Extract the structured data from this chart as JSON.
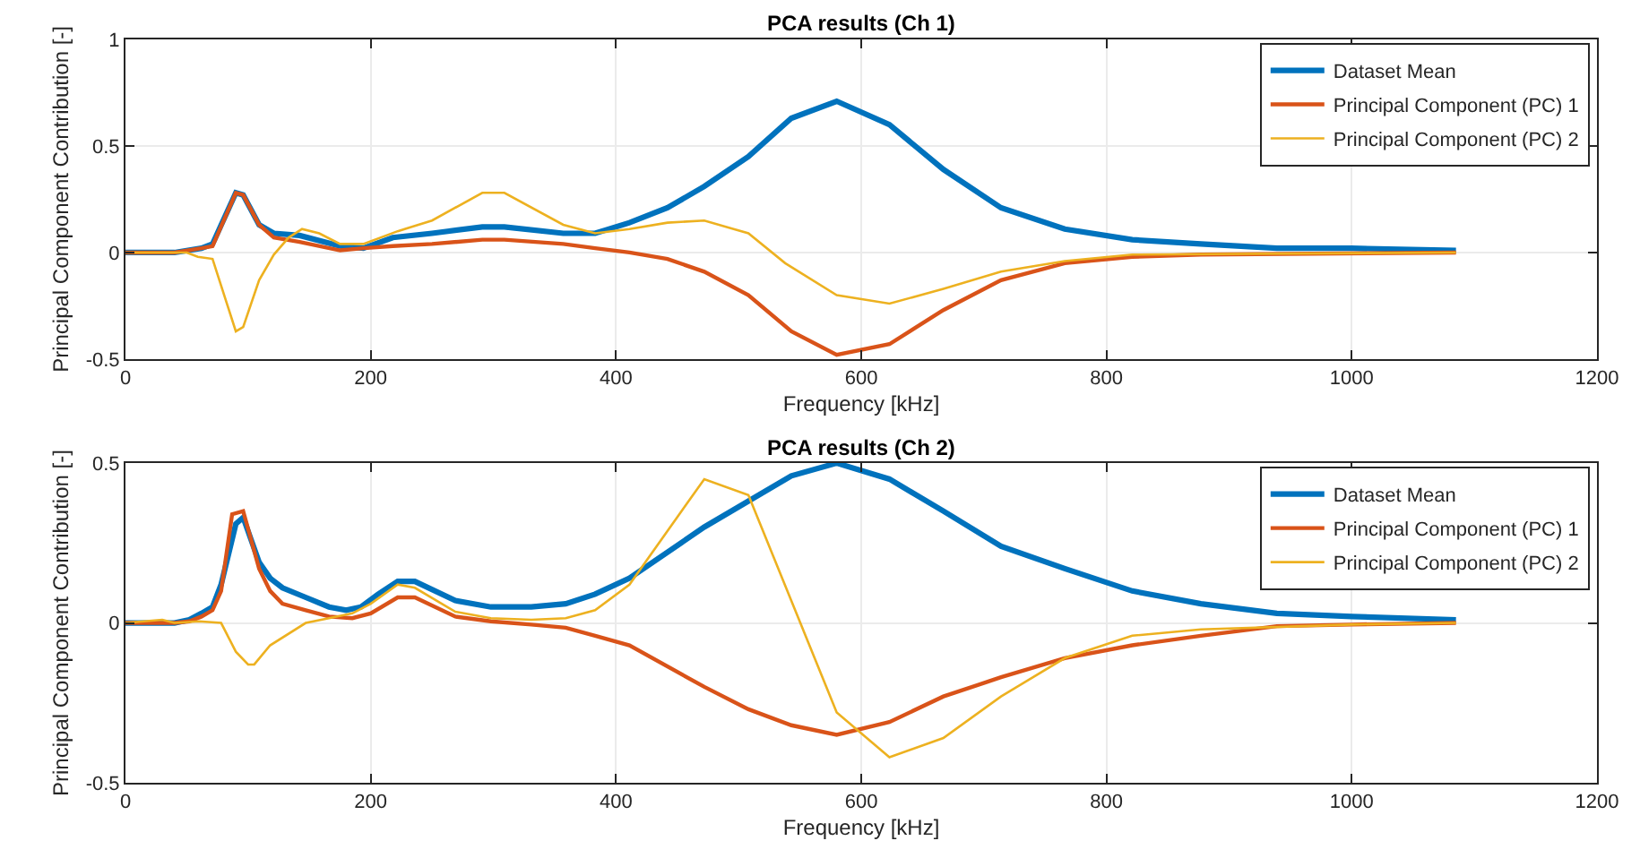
{
  "chart_data": [
    {
      "type": "line",
      "title": "PCA results (Ch 1)",
      "xlabel": "Frequency [kHz]",
      "ylabel": "Principal Component Contribution [-]",
      "xlim": [
        0,
        1200
      ],
      "xticks": [
        0,
        200,
        400,
        600,
        800,
        1000,
        1200
      ],
      "ylim": [
        -0.5,
        1
      ],
      "yticks": [
        -0.5,
        0,
        0.5,
        1
      ],
      "grid": true,
      "legend": "top right",
      "line_style": "solid",
      "series": [
        {
          "name": "Dataset Mean",
          "color": "#0072bd",
          "x": [
            0,
            40,
            62,
            71,
            90,
            96,
            109,
            121,
            142,
            175,
            194,
            218,
            250,
            291,
            309,
            357,
            383,
            411,
            442,
            472,
            508,
            543,
            580,
            623,
            667,
            714,
            766,
            821,
            877,
            939,
            1000,
            1085
          ],
          "values": [
            0,
            0,
            0.02,
            0.04,
            0.28,
            0.27,
            0.13,
            0.09,
            0.08,
            0.03,
            0.02,
            0.07,
            0.09,
            0.12,
            0.12,
            0.09,
            0.09,
            0.14,
            0.21,
            0.31,
            0.45,
            0.63,
            0.71,
            0.6,
            0.39,
            0.21,
            0.11,
            0.06,
            0.04,
            0.02,
            0.02,
            0.01
          ]
        },
        {
          "name": "Principal Component (PC) 1",
          "color": "#d95319",
          "x": [
            0,
            40,
            62,
            71,
            90,
            96,
            109,
            121,
            142,
            175,
            194,
            218,
            250,
            291,
            309,
            357,
            383,
            411,
            442,
            472,
            508,
            543,
            580,
            623,
            667,
            714,
            766,
            821,
            877,
            1085
          ],
          "values": [
            0,
            0,
            0.02,
            0.03,
            0.28,
            0.27,
            0.13,
            0.07,
            0.05,
            0.01,
            0.02,
            0.03,
            0.04,
            0.06,
            0.06,
            0.04,
            0.02,
            0,
            -0.03,
            -0.09,
            -0.2,
            -0.37,
            -0.48,
            -0.43,
            -0.27,
            -0.13,
            -0.05,
            -0.02,
            -0.01,
            0
          ]
        },
        {
          "name": "Principal Component (PC) 2",
          "color": "#edb120",
          "x": [
            0,
            40,
            50,
            59,
            71,
            90,
            96,
            109,
            121,
            133,
            144,
            158,
            175,
            194,
            222,
            250,
            291,
            309,
            357,
            383,
            411,
            442,
            472,
            508,
            538,
            580,
            623,
            667,
            714,
            766,
            821,
            1085
          ],
          "values": [
            0,
            0,
            0,
            -0.02,
            -0.03,
            -0.37,
            -0.35,
            -0.13,
            -0.01,
            0.07,
            0.11,
            0.09,
            0.04,
            0.04,
            0.1,
            0.15,
            0.28,
            0.28,
            0.13,
            0.09,
            0.11,
            0.14,
            0.15,
            0.09,
            -0.05,
            -0.2,
            -0.24,
            -0.17,
            -0.09,
            -0.04,
            -0.01,
            0
          ]
        }
      ]
    },
    {
      "type": "line",
      "title": "PCA results (Ch 2)",
      "xlabel": "Frequency [kHz]",
      "ylabel": "Principal Component Contribution [-]",
      "xlim": [
        0,
        1200
      ],
      "xticks": [
        0,
        200,
        400,
        600,
        800,
        1000,
        1200
      ],
      "ylim": [
        -0.5,
        0.5
      ],
      "yticks": [
        -0.5,
        0,
        0.5
      ],
      "grid": true,
      "legend": "top right",
      "line_style": "solid",
      "series": [
        {
          "name": "Dataset Mean",
          "color": "#0072bd",
          "x": [
            0,
            40,
            52,
            62,
            71,
            78,
            90,
            96,
            109,
            118,
            128,
            147,
            166,
            180,
            192,
            206,
            222,
            236,
            269,
            298,
            331,
            359,
            383,
            411,
            472,
            543,
            580,
            623,
            667,
            714,
            766,
            821,
            877,
            939,
            1000,
            1085
          ],
          "values": [
            0,
            0,
            0.01,
            0.03,
            0.05,
            0.12,
            0.31,
            0.33,
            0.19,
            0.14,
            0.11,
            0.08,
            0.05,
            0.04,
            0.05,
            0.09,
            0.13,
            0.13,
            0.07,
            0.05,
            0.05,
            0.06,
            0.09,
            0.14,
            0.3,
            0.46,
            0.5,
            0.45,
            0.35,
            0.24,
            0.17,
            0.1,
            0.06,
            0.03,
            0.02,
            0.01
          ]
        },
        {
          "name": "Principal Component (PC) 1",
          "color": "#d95319",
          "x": [
            0,
            40,
            52,
            62,
            71,
            78,
            87,
            96,
            109,
            118,
            128,
            147,
            166,
            185,
            200,
            222,
            236,
            269,
            298,
            331,
            359,
            383,
            411,
            472,
            508,
            543,
            580,
            623,
            667,
            714,
            766,
            821,
            877,
            939,
            1000,
            1085
          ],
          "values": [
            0,
            0,
            0.005,
            0.02,
            0.04,
            0.1,
            0.34,
            0.35,
            0.17,
            0.1,
            0.06,
            0.04,
            0.02,
            0.015,
            0.03,
            0.08,
            0.08,
            0.02,
            0.005,
            -0.005,
            -0.015,
            -0.04,
            -0.07,
            -0.2,
            -0.27,
            -0.32,
            -0.35,
            -0.31,
            -0.23,
            -0.17,
            -0.11,
            -0.07,
            -0.04,
            -0.01,
            -0.005,
            0
          ]
        },
        {
          "name": "Principal Component (PC) 2",
          "color": "#edb120",
          "x": [
            0,
            30,
            40,
            60,
            78,
            90,
            100,
            105,
            118,
            147,
            166,
            185,
            200,
            222,
            236,
            269,
            298,
            331,
            359,
            383,
            411,
            472,
            508,
            580,
            623,
            667,
            714,
            766,
            821,
            877,
            1000,
            1085
          ],
          "values": [
            0,
            0.01,
            0,
            0.005,
            0,
            -0.09,
            -0.13,
            -0.13,
            -0.07,
            0,
            0.015,
            0.03,
            0.06,
            0.12,
            0.11,
            0.035,
            0.015,
            0.01,
            0.015,
            0.04,
            0.12,
            0.45,
            0.4,
            -0.28,
            -0.42,
            -0.36,
            -0.23,
            -0.11,
            -0.04,
            -0.02,
            -0.005,
            0
          ]
        }
      ]
    }
  ]
}
